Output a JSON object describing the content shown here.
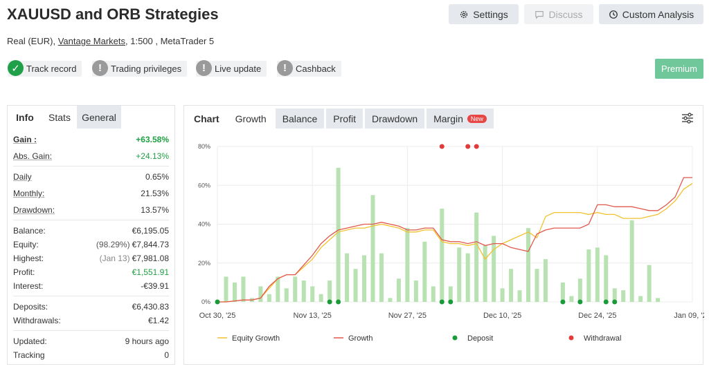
{
  "header": {
    "title": "XAUUSD and ORB Strategies",
    "account_type": "Real (EUR),",
    "broker": "Vantage Markets",
    "details": ", 1:500 , MetaTrader 5",
    "settings_label": "Settings",
    "discuss_label": "Discuss",
    "custom_analysis_label": "Custom Analysis",
    "premium_label": "Premium"
  },
  "badges": [
    {
      "label": "Track record",
      "status": "verified"
    },
    {
      "label": "Trading privileges",
      "status": "warning"
    },
    {
      "label": "Live update",
      "status": "warning"
    },
    {
      "label": "Cashback",
      "status": "warning"
    }
  ],
  "left_tabs": [
    "Info",
    "Stats",
    "General"
  ],
  "stats": {
    "gain_label": "Gain :",
    "gain_value": "+63.58%",
    "abs_gain_label": "Abs. Gain:",
    "abs_gain_value": "+24.13%",
    "daily_label": "Daily",
    "daily_value": "0.65%",
    "monthly_label": "Monthly:",
    "monthly_value": "21.53%",
    "drawdown_label": "Drawdown:",
    "drawdown_value": "13.57%",
    "balance_label": "Balance:",
    "balance_value": "€6,195.05",
    "equity_label": "Equity:",
    "equity_pct": "(98.29%)",
    "equity_value": "€7,844.73",
    "highest_label": "Highest:",
    "highest_date": "(Jan 13)",
    "highest_value": "€7,981.08",
    "profit_label": "Profit:",
    "profit_value": "€1,551.91",
    "interest_label": "Interest:",
    "interest_value": "-€39.91",
    "deposits_label": "Deposits:",
    "deposits_value": "€6,430.83",
    "withdrawals_label": "Withdrawals:",
    "withdrawals_value": "€1.42",
    "updated_label": "Updated:",
    "updated_value": "9 hours ago",
    "tracking_label": "Tracking",
    "tracking_value": "0"
  },
  "chart_tabs": [
    "Chart",
    "Growth",
    "Balance",
    "Profit",
    "Drawdown",
    "Margin"
  ],
  "new_badge": "New",
  "colors": {
    "equity_growth": "#f2c12e",
    "growth": "#e2574c",
    "deposit": "#1a9b3a",
    "withdrawal": "#e23b3b",
    "bar": "#b9e2b3"
  },
  "chart_data": {
    "type": "line",
    "y_ticks": [
      "0%",
      "20%",
      "40%",
      "60%",
      "80%"
    ],
    "ylim": [
      0,
      80
    ],
    "x_ticks": [
      "Oct 30, '25",
      "Nov 13, '25",
      "Nov 27, '25",
      "Dec 10, '25",
      "Dec 24, '25",
      "Jan 09, '26"
    ],
    "legend": [
      "Equity Growth",
      "Growth",
      "Deposit",
      "Withdrawal"
    ],
    "x_days": [
      0,
      1,
      2,
      3,
      4,
      5,
      6,
      7,
      8,
      9,
      10,
      11,
      12,
      13,
      14,
      15,
      16,
      17,
      18,
      19,
      20,
      21,
      22,
      23,
      24,
      25,
      26,
      27,
      28,
      29,
      30,
      31,
      32,
      33,
      34,
      35,
      36,
      37,
      38,
      39,
      40,
      41,
      42,
      43,
      44,
      45,
      46,
      47,
      48,
      49,
      50,
      51,
      52,
      53,
      54,
      55
    ],
    "bars": [
      0,
      13,
      10,
      13,
      2,
      8,
      4,
      13,
      7,
      13,
      11,
      8,
      4,
      11,
      69,
      25,
      17,
      24,
      55,
      25,
      2,
      12,
      38,
      11,
      31,
      8,
      48,
      8,
      28,
      25,
      46,
      29,
      34,
      7,
      17,
      6,
      38,
      17,
      22,
      0,
      10,
      3,
      12,
      27,
      28,
      24,
      7,
      6,
      42,
      3,
      19,
      2,
      0,
      0,
      0,
      0
    ],
    "growth": [
      0,
      0,
      0.5,
      1,
      1,
      2,
      8,
      12,
      14,
      14,
      19,
      24,
      30,
      34,
      37,
      38,
      39,
      40,
      40,
      41,
      40,
      39,
      37,
      37,
      38,
      38,
      32,
      31,
      31,
      30,
      31,
      29,
      30,
      30,
      28,
      27,
      26,
      35,
      37,
      38,
      38,
      38,
      38,
      40,
      50,
      50,
      49,
      49,
      49,
      48,
      47,
      47,
      50,
      54,
      64,
      64
    ],
    "equity_growth": [
      0,
      0,
      0.5,
      1,
      1,
      2,
      7,
      12,
      14,
      14,
      18,
      22,
      28,
      32,
      36,
      37,
      38,
      38,
      39,
      40,
      39,
      38,
      36,
      36,
      37,
      37,
      31,
      30,
      30,
      29,
      30,
      22,
      27,
      30,
      32,
      34,
      36,
      33,
      44,
      46,
      46,
      46,
      46,
      45,
      46,
      45,
      45,
      43,
      43,
      43,
      44,
      45,
      48,
      52,
      58,
      61
    ],
    "deposits_x": [
      0,
      13,
      14,
      26,
      27,
      40,
      42,
      45,
      46
    ],
    "withdrawals_x": [
      26,
      29,
      30
    ]
  }
}
